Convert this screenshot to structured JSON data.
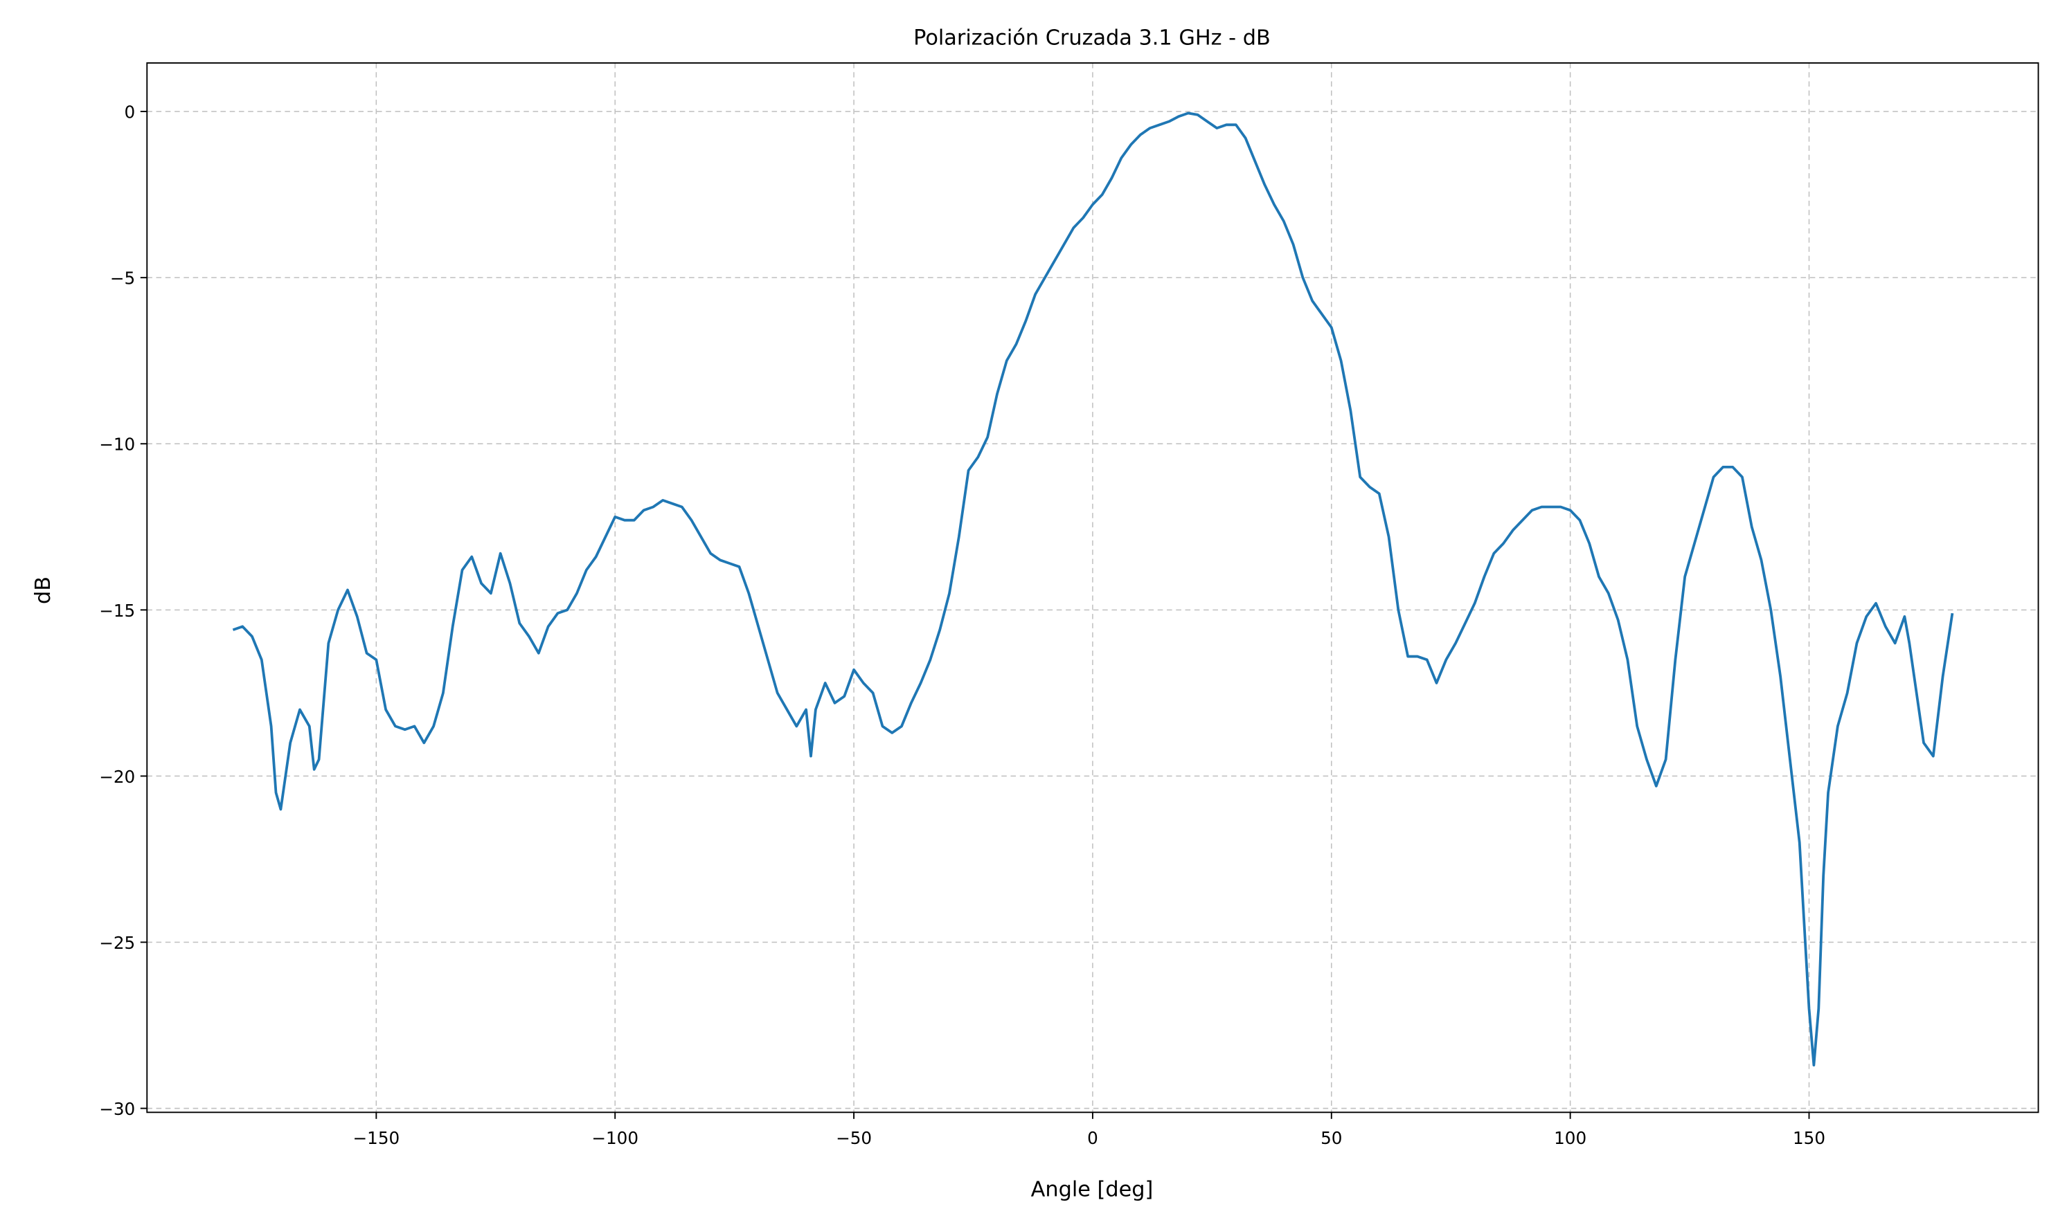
{
  "chart_data": {
    "type": "line",
    "title": "Polarización Cruzada 3.1 GHz - dB",
    "xlabel": "Angle [deg]",
    "ylabel": "dB",
    "x": [
      -180,
      -178,
      -176,
      -174,
      -172,
      -171,
      -170,
      -169,
      -168,
      -166,
      -164,
      -163,
      -162,
      -160,
      -158,
      -156,
      -154,
      -152,
      -150,
      -148,
      -146,
      -144,
      -142,
      -140,
      -138,
      -136,
      -134,
      -132,
      -130,
      -128,
      -126,
      -124,
      -122,
      -120,
      -118,
      -116,
      -114,
      -112,
      -110,
      -108,
      -106,
      -104,
      -102,
      -100,
      -98,
      -96,
      -94,
      -92,
      -90,
      -88,
      -86,
      -84,
      -82,
      -80,
      -78,
      -76,
      -74,
      -72,
      -70,
      -68,
      -66,
      -64,
      -62,
      -60,
      -59,
      -58,
      -56,
      -54,
      -52,
      -50,
      -48,
      -46,
      -44,
      -42,
      -40,
      -38,
      -36,
      -34,
      -32,
      -30,
      -28,
      -26,
      -24,
      -22,
      -20,
      -18,
      -16,
      -14,
      -12,
      -10,
      -8,
      -6,
      -4,
      -2,
      0,
      2,
      4,
      6,
      8,
      10,
      12,
      14,
      16,
      18,
      20,
      22,
      24,
      26,
      28,
      30,
      32,
      34,
      36,
      38,
      40,
      42,
      44,
      46,
      48,
      50,
      52,
      54,
      56,
      58,
      60,
      62,
      64,
      66,
      68,
      70,
      72,
      74,
      76,
      78,
      80,
      82,
      84,
      86,
      88,
      90,
      92,
      94,
      96,
      98,
      100,
      102,
      104,
      106,
      108,
      110,
      112,
      114,
      116,
      118,
      120,
      122,
      124,
      126,
      128,
      130,
      132,
      134,
      136,
      138,
      140,
      142,
      144,
      146,
      148,
      150,
      151,
      152,
      153,
      154,
      156,
      158,
      160,
      162,
      164,
      166,
      168,
      170,
      171,
      172,
      174,
      176,
      178,
      180
    ],
    "series": [
      {
        "color": "#1f77b4",
        "values": [
          -15.6,
          -15.5,
          -15.8,
          -16.5,
          -18.5,
          -20.5,
          -21.0,
          -20.0,
          -19.0,
          -18.0,
          -18.5,
          -19.8,
          -19.5,
          -16.0,
          -15.0,
          -14.4,
          -15.2,
          -16.3,
          -16.5,
          -18.0,
          -18.5,
          -18.6,
          -18.5,
          -19.0,
          -18.5,
          -17.5,
          -15.5,
          -13.8,
          -13.4,
          -14.2,
          -14.5,
          -13.3,
          -14.2,
          -15.4,
          -15.8,
          -16.3,
          -15.5,
          -15.1,
          -15.0,
          -14.5,
          -13.8,
          -13.4,
          -12.8,
          -12.2,
          -12.3,
          -12.3,
          -12.0,
          -11.9,
          -11.7,
          -11.8,
          -11.9,
          -12.3,
          -12.8,
          -13.3,
          -13.5,
          -13.6,
          -13.7,
          -14.5,
          -15.5,
          -16.5,
          -17.5,
          -18.0,
          -18.5,
          -18.0,
          -19.4,
          -18.0,
          -17.2,
          -17.8,
          -17.6,
          -16.8,
          -17.2,
          -17.5,
          -18.5,
          -18.7,
          -18.5,
          -17.8,
          -17.2,
          -16.5,
          -15.6,
          -14.5,
          -12.8,
          -10.8,
          -10.4,
          -9.8,
          -8.5,
          -7.5,
          -7.0,
          -6.3,
          -5.5,
          -5.0,
          -4.5,
          -4.0,
          -3.5,
          -3.2,
          -2.8,
          -2.5,
          -2.0,
          -1.4,
          -1.0,
          -0.7,
          -0.5,
          -0.4,
          -0.3,
          -0.15,
          -0.05,
          -0.1,
          -0.3,
          -0.5,
          -0.4,
          -0.4,
          -0.8,
          -1.5,
          -2.2,
          -2.8,
          -3.3,
          -4.0,
          -5.0,
          -5.7,
          -6.1,
          -6.5,
          -7.5,
          -9.0,
          -11.0,
          -11.3,
          -11.5,
          -12.8,
          -15.0,
          -16.4,
          -16.4,
          -16.5,
          -17.2,
          -16.5,
          -16.0,
          -15.4,
          -14.8,
          -14.0,
          -13.3,
          -13.0,
          -12.6,
          -12.3,
          -12.0,
          -11.9,
          -11.9,
          -11.9,
          -12.0,
          -12.3,
          -13.0,
          -14.0,
          -14.5,
          -15.3,
          -16.5,
          -18.5,
          -19.5,
          -20.3,
          -19.5,
          -16.5,
          -14.0,
          -13.0,
          -12.0,
          -11.0,
          -10.7,
          -10.7,
          -11.0,
          -12.5,
          -13.5,
          -15.0,
          -17.0,
          -19.5,
          -22.0,
          -27.0,
          -28.7,
          -27.0,
          -23.0,
          -20.5,
          -18.5,
          -17.5,
          -16.0,
          -15.2,
          -14.8,
          -15.5,
          -16.0,
          -15.2,
          -16.0,
          -17.0,
          -19.0,
          -19.4,
          -17.0,
          -15.1
        ]
      }
    ],
    "xlim": [
      -198,
      198
    ],
    "ylim": [
      -30.12,
      1.46
    ],
    "xticks": [
      {
        "value": -150,
        "label": "−150"
      },
      {
        "value": -100,
        "label": "−100"
      },
      {
        "value": -50,
        "label": "−50"
      },
      0,
      50,
      100,
      150
    ],
    "yticks": [
      0,
      {
        "value": -5,
        "label": "−5"
      },
      {
        "value": -10,
        "label": "−10"
      },
      {
        "value": -15,
        "label": "−15"
      },
      {
        "value": -20,
        "label": "−20"
      },
      {
        "value": -25,
        "label": "−25"
      },
      {
        "value": -30,
        "label": "−30"
      }
    ],
    "grid": true
  }
}
